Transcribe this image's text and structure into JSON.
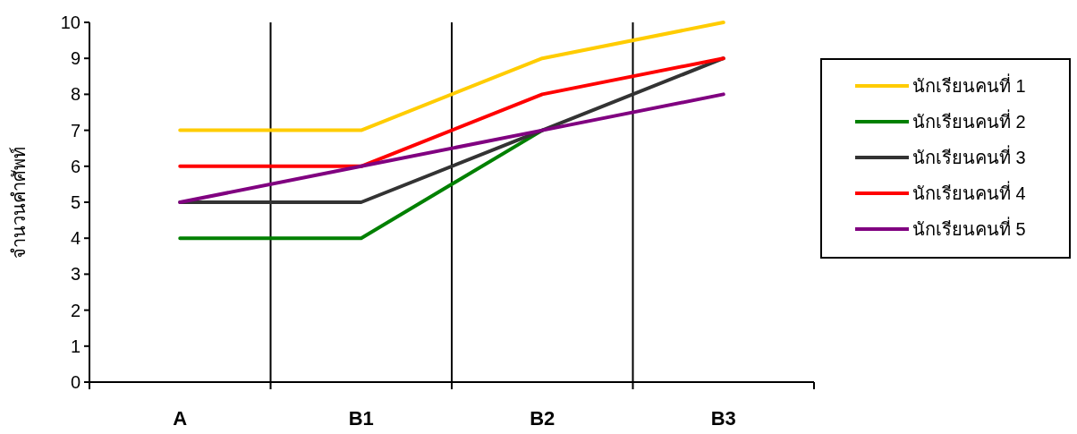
{
  "chart_data": {
    "type": "line",
    "ylabel": "จำนวนคำศัพท์",
    "categories": [
      "A",
      "B1",
      "B2",
      "B3"
    ],
    "ylim": [
      0,
      10
    ],
    "yticks": [
      0,
      1,
      2,
      3,
      4,
      5,
      6,
      7,
      8,
      9,
      10
    ],
    "grid": "x",
    "legend": "right",
    "marker": "none",
    "line_style": "solid",
    "series": [
      {
        "name": "นักเรียนคนที่ 1",
        "color": "#ffcc00",
        "values": [
          7,
          7,
          9,
          10
        ]
      },
      {
        "name": "นักเรียนคนที่ 2",
        "color": "#008000",
        "values": [
          4,
          4,
          7,
          null
        ]
      },
      {
        "name": "นักเรียนคนที่ 3",
        "color": "#333333",
        "values": [
          5,
          5,
          7,
          9
        ]
      },
      {
        "name": "นักเรียนคนที่ 4",
        "color": "#ff0000",
        "values": [
          6,
          6,
          8,
          9
        ]
      },
      {
        "name": "นักเรียนคนที่ 5",
        "color": "#800080",
        "values": [
          5,
          6,
          7,
          8
        ]
      }
    ]
  }
}
